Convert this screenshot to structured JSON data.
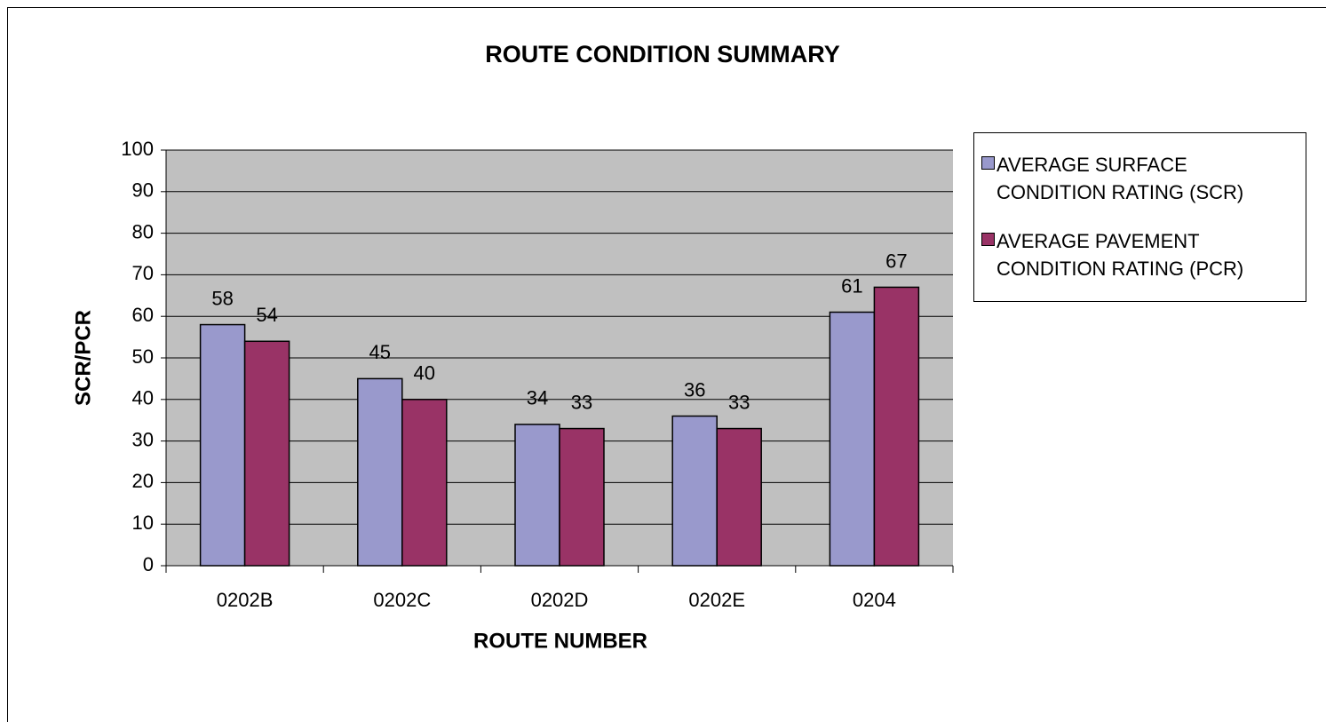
{
  "chart_data": {
    "type": "bar",
    "title": "ROUTE CONDITION SUMMARY",
    "x_label": "ROUTE NUMBER",
    "y_label": "SCR/PCR",
    "categories": [
      "0202B",
      "0202C",
      "0202D",
      "0202E",
      "0204"
    ],
    "series": [
      {
        "name": "AVERAGE SURFACE CONDITION RATING (SCR)",
        "color": "#9999cc",
        "values": [
          58,
          45,
          34,
          36,
          61
        ]
      },
      {
        "name": "AVERAGE PAVEMENT CONDITION RATING (PCR)",
        "color": "#993366",
        "values": [
          54,
          40,
          33,
          33,
          67
        ]
      }
    ],
    "ylim": [
      0,
      100
    ],
    "yticks": [
      0,
      10,
      20,
      30,
      40,
      50,
      60,
      70,
      80,
      90,
      100
    ],
    "grid": true,
    "legend": "right"
  }
}
